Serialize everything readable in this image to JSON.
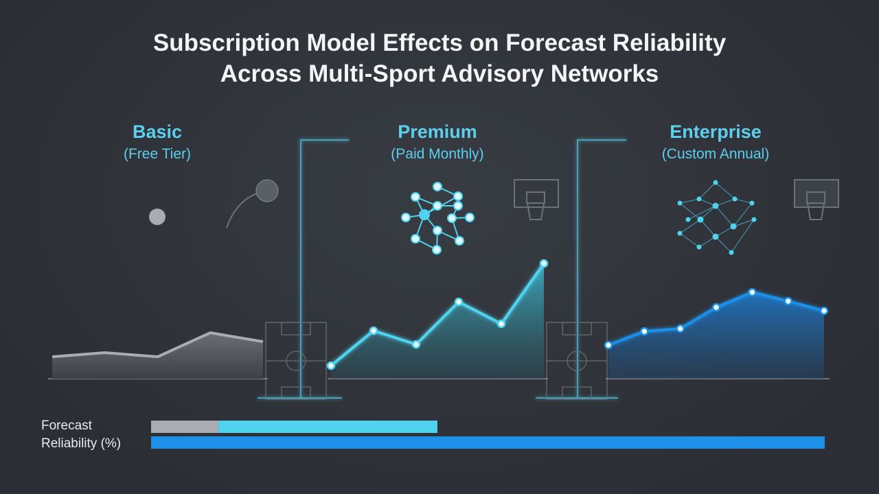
{
  "title": [
    "Subscription Model Effects on Forecast Reliability",
    "Across Multi-Sport Advisory Networks"
  ],
  "chart_data": [
    {
      "type": "area",
      "title": "Basic",
      "subtitle": "(Free Tier)",
      "color": "#a9acb0",
      "markers": false,
      "ylim": [
        0,
        100
      ],
      "values": [
        16,
        19,
        16,
        33.5,
        27
      ]
    },
    {
      "type": "area",
      "title": "Premium",
      "subtitle": "(Paid Monthly)",
      "color": "#4fd3ef",
      "markers": true,
      "ylim": [
        0,
        100
      ],
      "values": [
        9.5,
        35,
        25,
        56,
        40,
        84
      ]
    },
    {
      "type": "area",
      "title": "Enterprise",
      "subtitle": "(Custom Annual)",
      "color": "#1e90e8",
      "markers": true,
      "ylim": [
        0,
        100
      ],
      "values": [
        24.5,
        34.5,
        36.5,
        52,
        63,
        56.5,
        49.5
      ]
    },
    {
      "type": "hbar",
      "ylabel": "Forecast Reliability (%)",
      "xlim": [
        0,
        100
      ],
      "series": [
        {
          "color": "#a9acb0",
          "values": [
            10,
            null
          ]
        },
        {
          "color": "#4fd3ef",
          "values": [
            32.5,
            null
          ]
        },
        {
          "color": "#1e90e8",
          "values": [
            null,
            100
          ]
        }
      ]
    }
  ]
}
